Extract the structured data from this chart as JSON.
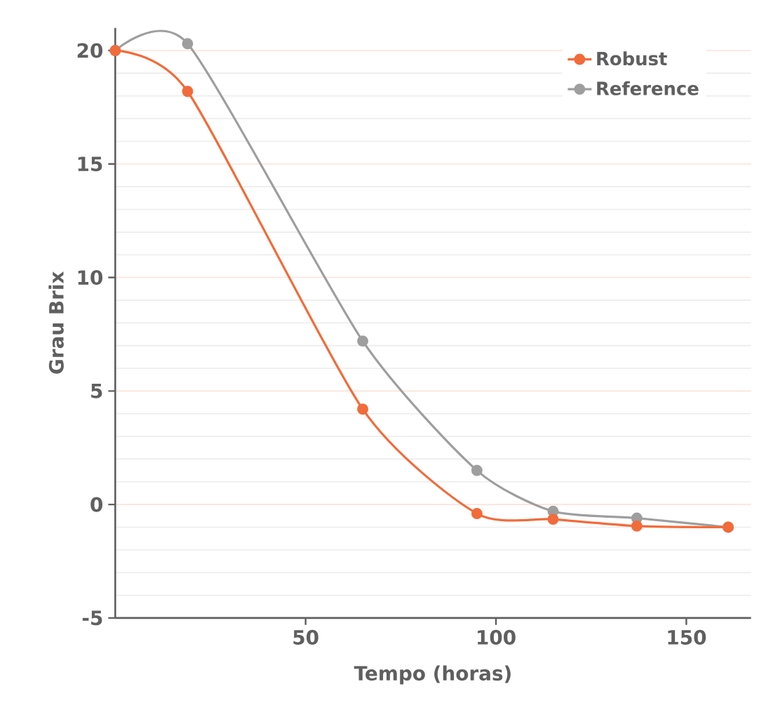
{
  "chart_data": {
    "type": "line",
    "xlabel": "Tempo (horas)",
    "ylabel": "Grau Brix",
    "xlim": [
      0,
      167
    ],
    "xticks": [
      50,
      100,
      150
    ],
    "ylim": [
      -5,
      21
    ],
    "yticks": [
      -5,
      0,
      5,
      10,
      15,
      20
    ],
    "grid": "y",
    "legend": "top right",
    "marker": "circle",
    "line_style": "solid",
    "series": [
      {
        "name": "Robust",
        "color": "#f26b3a",
        "x": [
          0,
          19,
          65,
          95,
          115,
          137,
          161
        ],
        "values": [
          20,
          18.2,
          4.2,
          -0.4,
          -0.65,
          -0.95,
          -1.0
        ]
      },
      {
        "name": "Reference",
        "color": "#9e9e9e",
        "x": [
          0,
          19,
          65,
          95,
          115,
          137,
          161
        ],
        "values": [
          20,
          20.3,
          7.2,
          1.5,
          -0.3,
          -0.6,
          -1.0
        ]
      }
    ]
  }
}
